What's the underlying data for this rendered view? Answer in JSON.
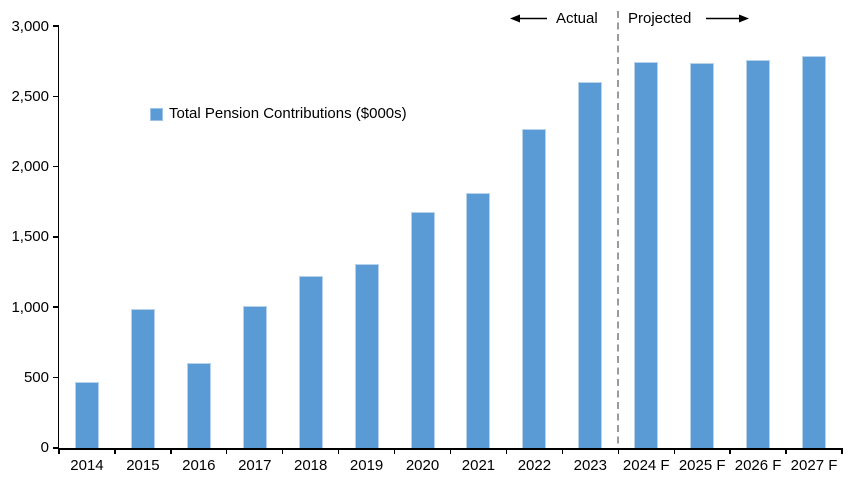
{
  "chart_data": {
    "type": "bar",
    "title": "",
    "legend": [
      "Total Pension Contributions ($000s)"
    ],
    "categories": [
      "2014",
      "2015",
      "2016",
      "2017",
      "2018",
      "2019",
      "2020",
      "2021",
      "2022",
      "2023",
      "2024 F",
      "2025 F",
      "2026 F",
      "2027 F"
    ],
    "values": [
      465,
      985,
      600,
      1010,
      1220,
      1310,
      1675,
      1810,
      2270,
      2605,
      2745,
      2740,
      2760,
      2790
    ],
    "ylim": [
      0,
      3000
    ],
    "ytick_step": 500,
    "ytick_labels": [
      "0",
      "500",
      "1,000",
      "1,500",
      "2,000",
      "2,500",
      "3,000"
    ],
    "grid": false,
    "legend_position": "inside-upper-left",
    "bar_color": "#5b9bd5",
    "bar_border_color": "#b7d2eb",
    "divider_color": "#9b9b9b",
    "axis_color": "#000000",
    "annotations": {
      "actual_label": "Actual",
      "projected_label": "Projected",
      "divider_after_index": 9
    }
  }
}
